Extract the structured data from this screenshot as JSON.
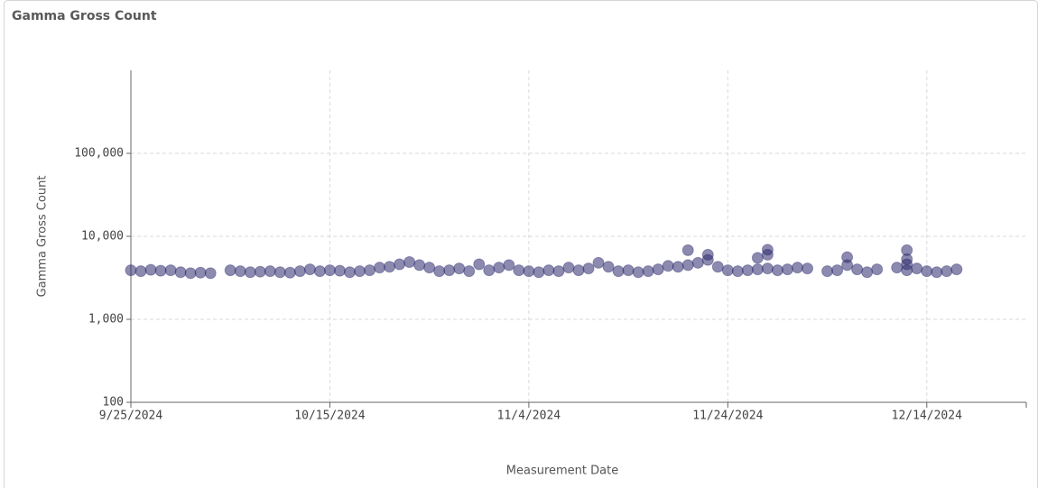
{
  "chart_data": {
    "type": "scatter",
    "title": "Gamma Gross Count",
    "x_label": "Measurement Date",
    "y_label": "Gamma Gross Count",
    "color": "#2d2a6e",
    "log_y": true,
    "grid": true,
    "xlim": [
      "9/25/2024",
      "12/24/2024"
    ],
    "xticks": [
      "9/25/2024",
      "10/15/2024",
      "11/4/2024",
      "11/24/2024",
      "12/14/2024"
    ],
    "ylim": [
      100,
      1000000
    ],
    "yticks": [
      100,
      {
        "value": 1000,
        "label": "1,000"
      },
      {
        "value": 10000,
        "label": "10,000"
      },
      {
        "value": 100000,
        "label": "100,000"
      }
    ],
    "x": [
      "9/25/2024",
      "9/26/2024",
      "9/27/2024",
      "9/28/2024",
      "9/29/2024",
      "9/30/2024",
      "10/1/2024",
      "10/2/2024",
      "10/3/2024",
      "10/5/2024",
      "10/6/2024",
      "10/7/2024",
      "10/8/2024",
      "10/9/2024",
      "10/10/2024",
      "10/11/2024",
      "10/12/2024",
      "10/13/2024",
      "10/14/2024",
      "10/15/2024",
      "10/16/2024",
      "10/17/2024",
      "10/18/2024",
      "10/19/2024",
      "10/20/2024",
      "10/21/2024",
      "10/22/2024",
      "10/23/2024",
      "10/24/2024",
      "10/25/2024",
      "10/26/2024",
      "10/27/2024",
      "10/28/2024",
      "10/29/2024",
      "10/30/2024",
      "10/31/2024",
      "11/1/2024",
      "11/2/2024",
      "11/3/2024",
      "11/4/2024",
      "11/5/2024",
      "11/6/2024",
      "11/7/2024",
      "11/8/2024",
      "11/9/2024",
      "11/10/2024",
      "11/11/2024",
      "11/12/2024",
      "11/13/2024",
      "11/14/2024",
      "11/15/2024",
      "11/16/2024",
      "11/17/2024",
      "11/18/2024",
      "11/19/2024",
      "11/20/2024",
      "11/21/2024",
      "11/22/2024",
      "11/23/2024",
      "11/24/2024",
      "11/25/2024",
      "11/26/2024",
      "11/27/2024",
      "11/28/2024",
      "11/29/2024",
      "11/30/2024",
      "12/1/2024",
      "12/2/2024",
      "11/20/2024",
      "11/22/2024",
      "11/27/2024",
      "11/28/2024",
      "11/28/2024",
      "12/4/2024",
      "12/5/2024",
      "12/6/2024",
      "12/7/2024",
      "12/8/2024",
      "12/9/2024",
      "12/6/2024",
      "12/11/2024",
      "12/12/2024",
      "12/13/2024",
      "12/14/2024",
      "12/15/2024",
      "12/16/2024",
      "12/17/2024",
      "12/12/2024",
      "12/12/2024",
      "12/12/2024"
    ],
    "values": [
      3900,
      3800,
      3950,
      3850,
      3900,
      3700,
      3600,
      3650,
      3600,
      3900,
      3800,
      3700,
      3750,
      3800,
      3700,
      3650,
      3800,
      4000,
      3800,
      3900,
      3850,
      3700,
      3800,
      3900,
      4200,
      4300,
      4600,
      4900,
      4500,
      4200,
      3800,
      3900,
      4100,
      3800,
      4600,
      3900,
      4200,
      4500,
      3900,
      3800,
      3700,
      3900,
      3800,
      4200,
      3900,
      4100,
      4800,
      4300,
      3800,
      3900,
      3700,
      3800,
      4000,
      4400,
      4300,
      4500,
      4800,
      5200,
      4300,
      3900,
      3800,
      3900,
      4000,
      4100,
      3900,
      4000,
      4200,
      4100,
      6800,
      6000,
      5500,
      6900,
      6000,
      3800,
      3900,
      4500,
      4000,
      3700,
      4000,
      5600,
      4200,
      3900,
      4100,
      3800,
      3700,
      3800,
      4000,
      6800,
      5300,
      4600
    ]
  }
}
